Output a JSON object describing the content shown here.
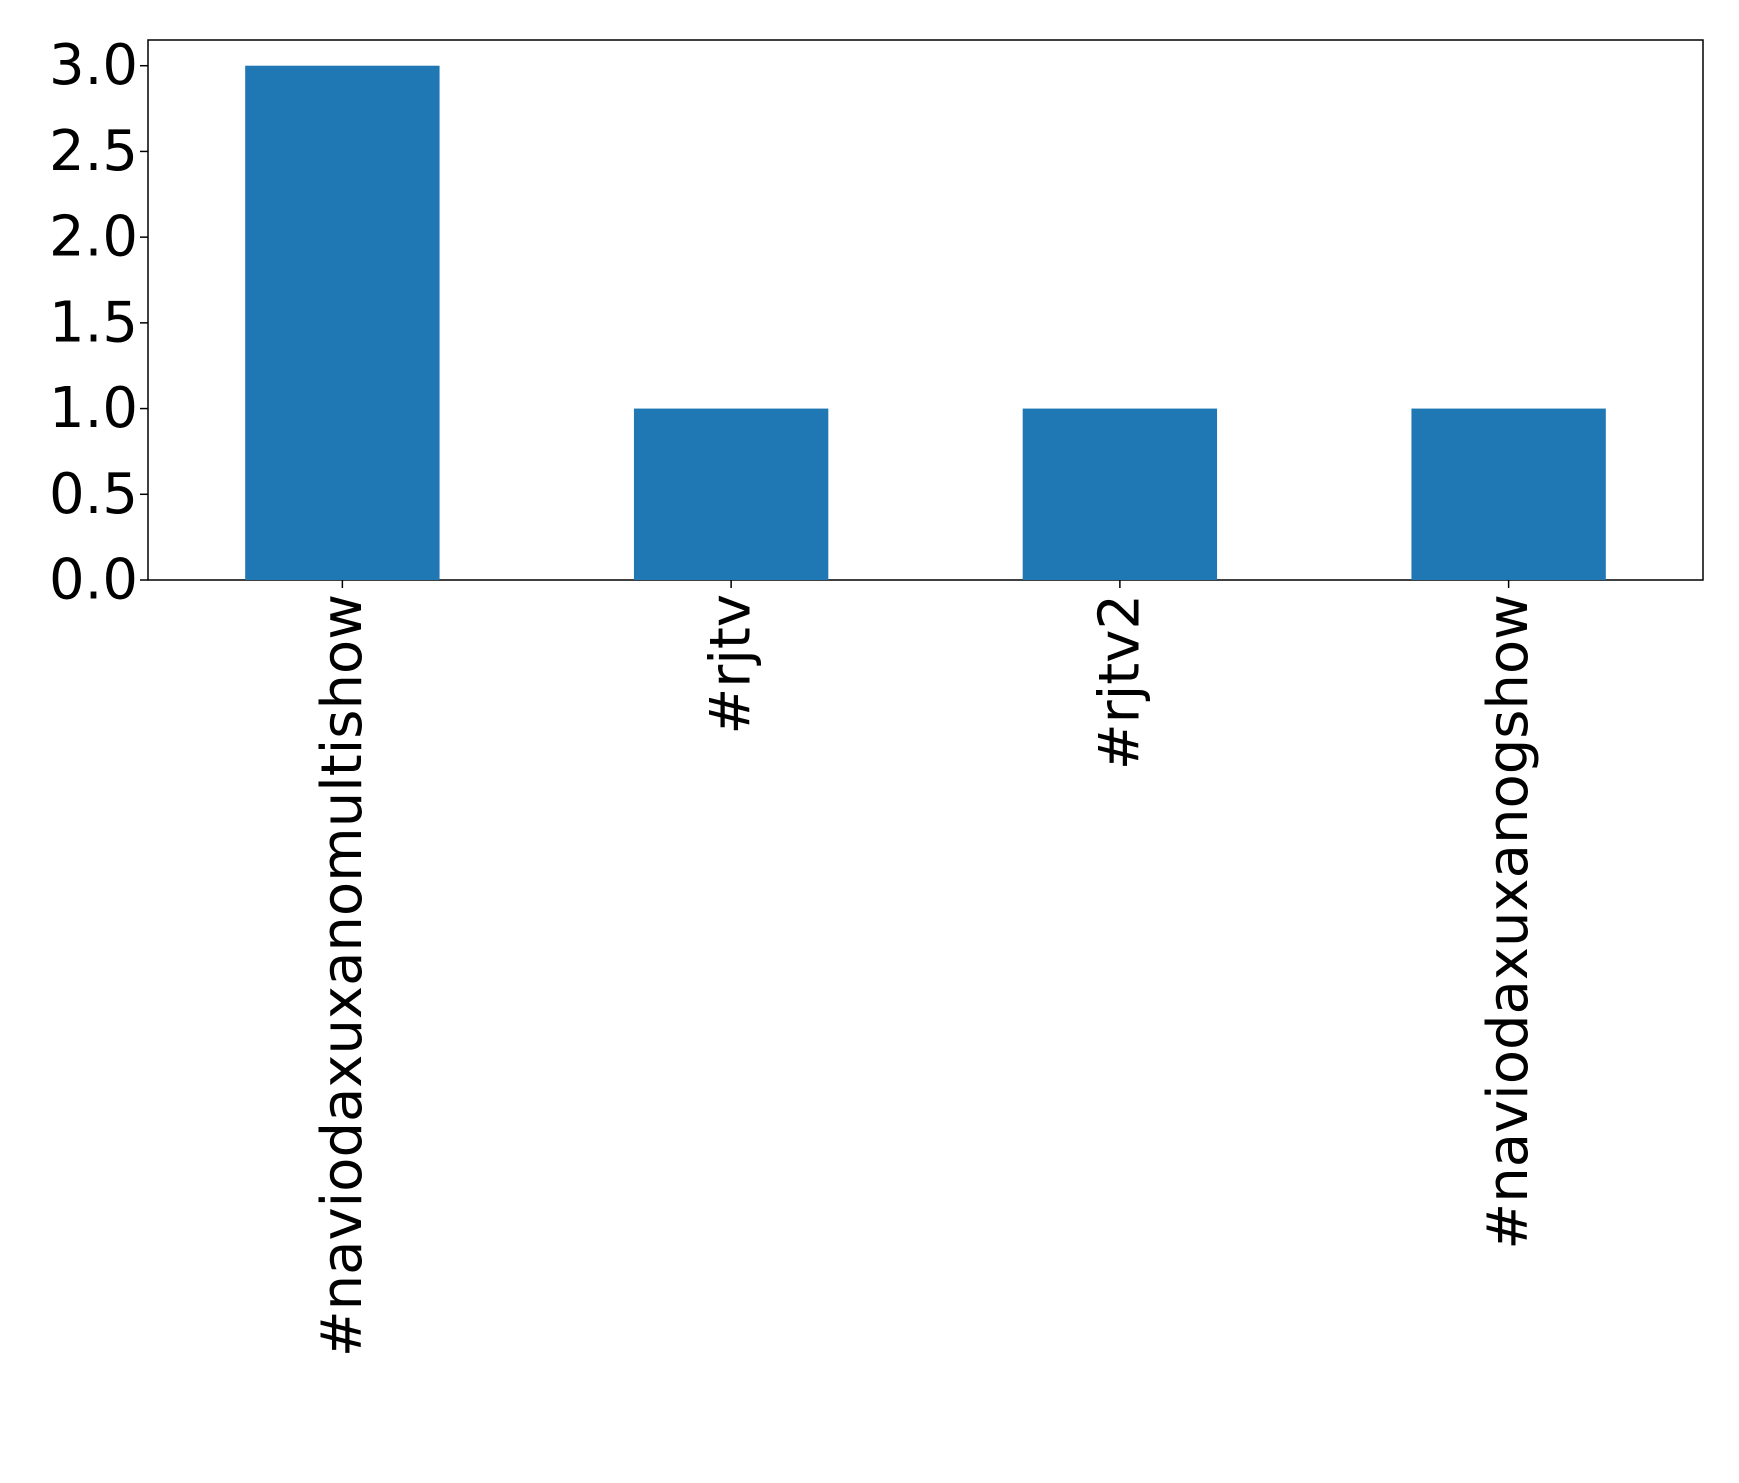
{
  "chart_data": {
    "type": "bar",
    "title": "",
    "xlabel": "",
    "ylabel": "",
    "categories": [
      "#naviodaxuxanomultishow",
      "#rjtv",
      "#rjtv2",
      "#naviodaxuxanogshow"
    ],
    "values": [
      3,
      1,
      1,
      1
    ],
    "ylim": [
      0,
      3.15
    ],
    "yticks": [
      "0.0",
      "0.5",
      "1.0",
      "1.5",
      "2.0",
      "2.5",
      "3.0"
    ],
    "bar_color": "#1f77b4",
    "grid": false,
    "legend": "none"
  }
}
